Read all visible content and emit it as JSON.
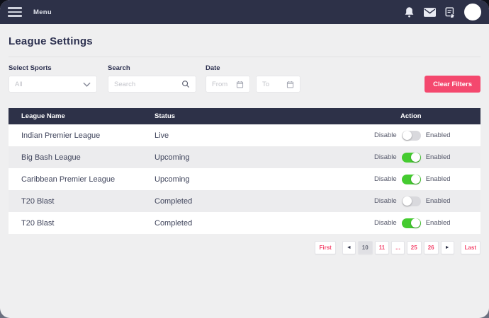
{
  "navbar": {
    "menu_label": "Menu",
    "bg_color": "#2d3148",
    "icons": [
      "hamburger-icon",
      "bell-icon",
      "mail-icon",
      "file-edit-icon",
      "avatar"
    ]
  },
  "page": {
    "title": "League Settings"
  },
  "filters": {
    "select_sports": {
      "label": "Select Sports",
      "value": "All"
    },
    "search": {
      "label": "Search",
      "placeholder": "Search"
    },
    "date": {
      "label": "Date",
      "from_placeholder": "From",
      "to_placeholder": "To"
    },
    "clear_button": {
      "label": "Clear Filters",
      "color": "#f4486e"
    }
  },
  "table": {
    "columns": [
      "League Name",
      "Status",
      "Action"
    ],
    "toggle": {
      "off_label": "Disable",
      "on_label": "Enabled",
      "on_color": "#45cb30",
      "off_color": "#d9d9dd"
    },
    "rows": [
      {
        "league": "Indian Premier League",
        "status": "Live",
        "toggle_on": false
      },
      {
        "league": "Big Bash League",
        "status": "Upcoming",
        "toggle_on": true
      },
      {
        "league": "Caribbean Premier League",
        "status": "Upcoming",
        "toggle_on": true
      },
      {
        "league": "T20 Blast",
        "status": "Completed",
        "toggle_on": false
      },
      {
        "league": "T20 Blast",
        "status": "Completed",
        "toggle_on": true
      }
    ]
  },
  "pagination": {
    "first_label": "First",
    "prev_label": "◄",
    "pages": [
      "10",
      "11",
      "...",
      "25",
      "26"
    ],
    "active_page": "10",
    "next_label": "►",
    "last_label": "Last",
    "accent_color": "#f4486e"
  }
}
